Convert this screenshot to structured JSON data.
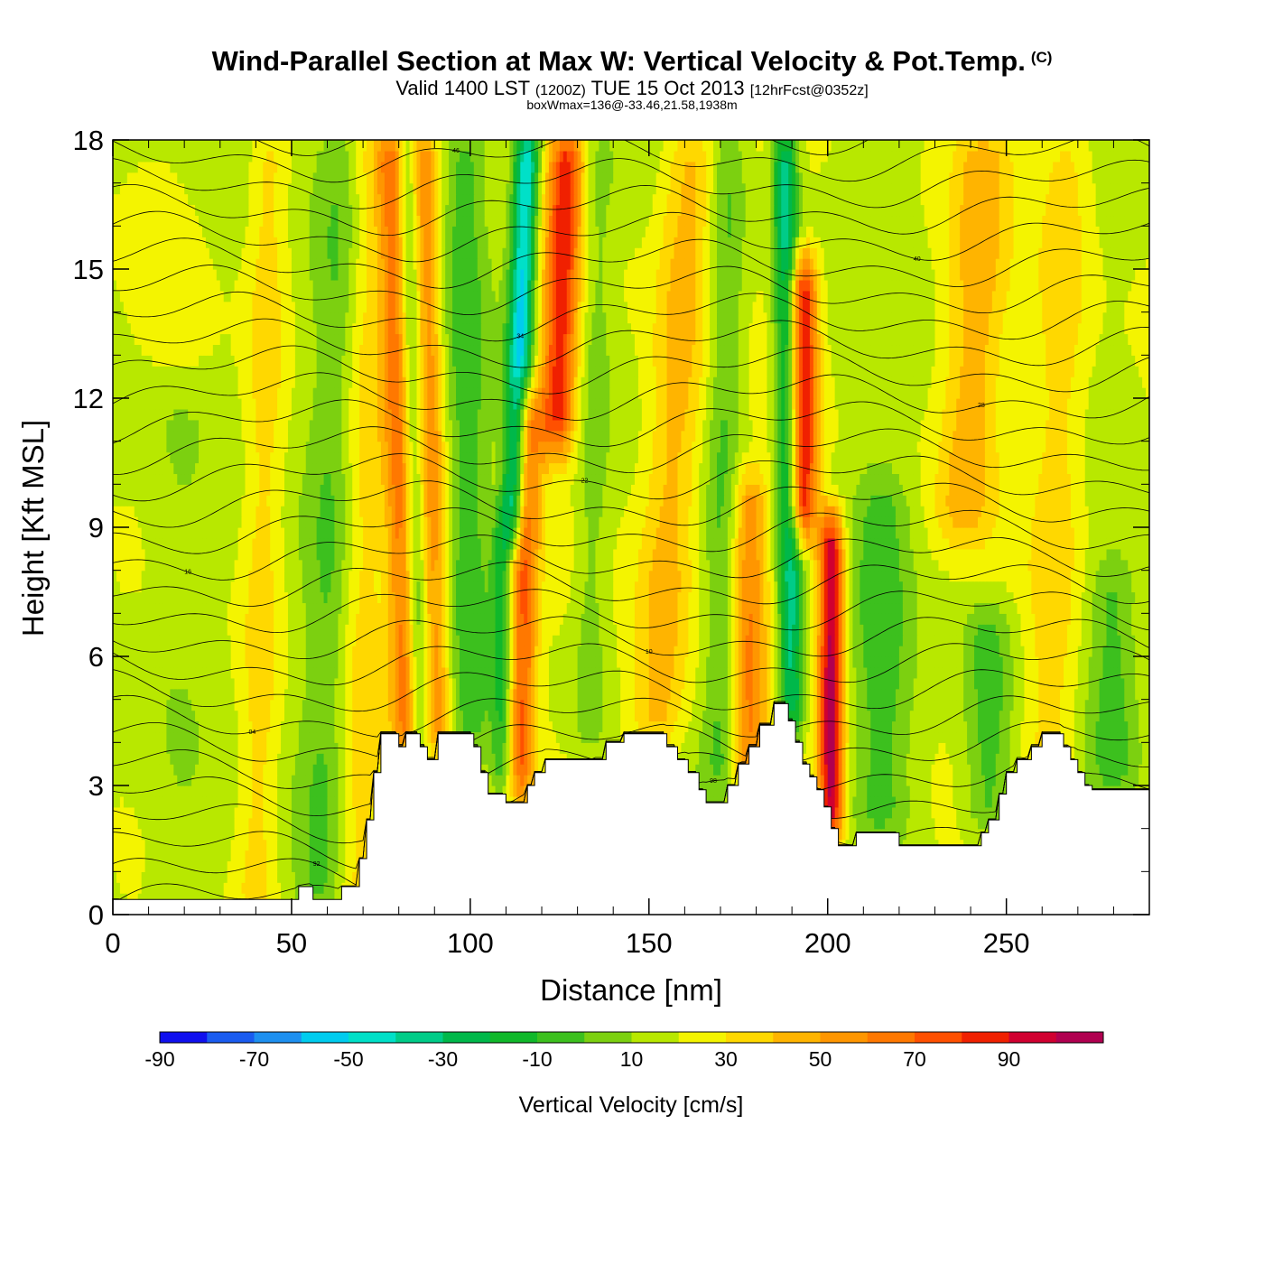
{
  "header": {
    "title": "Wind-Parallel Section at Max W: Vertical Velocity & Pot.Temp.",
    "copyright": "(C)",
    "subtitle_main": "Valid 1400 LST",
    "subtitle_utc": "(1200Z)",
    "subtitle_date": "TUE 15 Oct 2013",
    "subtitle_fcst": "[12hrFcst@0352z]",
    "subtitle2": "boxWmax=136@-33.46,21.58,1938m"
  },
  "chart_data": {
    "type": "heatmap",
    "title": "Wind-Parallel Section at Max W: Vertical Velocity & Pot.Temp.",
    "xlabel": "Distance [nm]",
    "ylabel": "Height [Kft MSL]",
    "xlim": [
      0,
      290
    ],
    "ylim": [
      0,
      18
    ],
    "x_ticks": [
      0,
      50,
      100,
      150,
      200,
      250
    ],
    "x_tick_labels": [
      "0",
      "50",
      "100",
      "150",
      "200",
      "250"
    ],
    "y_ticks": [
      0,
      3,
      6,
      9,
      12,
      15,
      18
    ],
    "y_tick_labels": [
      "0",
      "3",
      "6",
      "9",
      "12",
      "15",
      "18"
    ],
    "colorbar": {
      "title": "Vertical Velocity [cm/s]",
      "levels": [
        -100,
        -90,
        -80,
        -70,
        -60,
        -50,
        -40,
        -30,
        -20,
        -10,
        0,
        10,
        20,
        30,
        40,
        50,
        60,
        70,
        80,
        90,
        100
      ],
      "tick_labels": [
        "-90",
        "-70",
        "-50",
        "-30",
        "-10",
        "10",
        "30",
        "50",
        "70",
        "90"
      ],
      "colors": [
        "#1010ee",
        "#1a5cf0",
        "#1e90f0",
        "#00ccee",
        "#00e0c8",
        "#00cc88",
        "#00b84a",
        "#10b82a",
        "#3cc01e",
        "#7cd010",
        "#b8e800",
        "#f4f400",
        "#ffd800",
        "#ffb400",
        "#ff9600",
        "#ff7800",
        "#ff5000",
        "#f02000",
        "#d00030",
        "#b00050"
      ]
    },
    "terrain": [
      [
        0,
        0.35
      ],
      [
        52,
        0.35
      ],
      [
        52,
        0.65
      ],
      [
        56,
        0.65
      ],
      [
        56,
        0.35
      ],
      [
        64,
        0.35
      ],
      [
        64,
        0.65
      ],
      [
        69,
        0.65
      ],
      [
        69,
        1.3
      ],
      [
        71,
        1.3
      ],
      [
        71,
        2.2
      ],
      [
        73,
        2.2
      ],
      [
        73,
        3.3
      ],
      [
        75,
        3.3
      ],
      [
        75,
        4.2
      ],
      [
        80,
        4.2
      ],
      [
        80,
        3.9
      ],
      [
        82,
        3.9
      ],
      [
        82,
        4.2
      ],
      [
        86,
        4.2
      ],
      [
        86,
        3.9
      ],
      [
        88,
        3.9
      ],
      [
        88,
        3.6
      ],
      [
        91,
        3.6
      ],
      [
        91,
        4.2
      ],
      [
        101,
        4.2
      ],
      [
        101,
        3.9
      ],
      [
        103,
        3.9
      ],
      [
        103,
        3.3
      ],
      [
        105,
        3.3
      ],
      [
        105,
        2.8
      ],
      [
        110,
        2.8
      ],
      [
        110,
        2.6
      ],
      [
        116,
        2.6
      ],
      [
        116,
        3.0
      ],
      [
        118,
        3.0
      ],
      [
        118,
        3.3
      ],
      [
        121,
        3.3
      ],
      [
        121,
        3.6
      ],
      [
        138,
        3.6
      ],
      [
        138,
        4.0
      ],
      [
        143,
        4.0
      ],
      [
        143,
        4.2
      ],
      [
        155,
        4.2
      ],
      [
        155,
        3.9
      ],
      [
        158,
        3.9
      ],
      [
        158,
        3.6
      ],
      [
        161,
        3.6
      ],
      [
        161,
        3.3
      ],
      [
        164,
        3.3
      ],
      [
        164,
        2.9
      ],
      [
        166,
        2.9
      ],
      [
        166,
        2.6
      ],
      [
        172,
        2.6
      ],
      [
        172,
        3.0
      ],
      [
        175,
        3.0
      ],
      [
        175,
        3.5
      ],
      [
        178,
        3.5
      ],
      [
        178,
        3.9
      ],
      [
        181,
        3.9
      ],
      [
        181,
        4.4
      ],
      [
        185,
        4.4
      ],
      [
        185,
        4.9
      ],
      [
        189,
        4.9
      ],
      [
        189,
        4.5
      ],
      [
        191,
        4.5
      ],
      [
        191,
        4.0
      ],
      [
        193,
        4.0
      ],
      [
        193,
        3.5
      ],
      [
        195,
        3.5
      ],
      [
        195,
        3.2
      ],
      [
        197,
        3.2
      ],
      [
        197,
        2.9
      ],
      [
        199,
        2.9
      ],
      [
        199,
        2.5
      ],
      [
        201,
        2.5
      ],
      [
        201,
        2.0
      ],
      [
        203,
        2.0
      ],
      [
        203,
        1.6
      ],
      [
        208,
        1.6
      ],
      [
        208,
        1.9
      ],
      [
        220,
        1.9
      ],
      [
        220,
        1.6
      ],
      [
        243,
        1.6
      ],
      [
        243,
        1.9
      ],
      [
        245,
        1.9
      ],
      [
        245,
        2.2
      ],
      [
        248,
        2.2
      ],
      [
        248,
        2.8
      ],
      [
        250,
        2.8
      ],
      [
        250,
        3.3
      ],
      [
        253,
        3.3
      ],
      [
        253,
        3.6
      ],
      [
        257,
        3.6
      ],
      [
        257,
        3.9
      ],
      [
        260,
        3.9
      ],
      [
        260,
        4.2
      ],
      [
        266,
        4.2
      ],
      [
        266,
        3.9
      ],
      [
        268,
        3.9
      ],
      [
        268,
        3.6
      ],
      [
        270,
        3.6
      ],
      [
        270,
        3.3
      ],
      [
        272,
        3.3
      ],
      [
        272,
        3.0
      ],
      [
        274,
        3.0
      ],
      [
        274,
        2.9
      ],
      [
        290,
        2.9
      ]
    ],
    "velocity_features": [
      {
        "x": 40,
        "w": 6,
        "value": 20,
        "y0": 0,
        "y1": 18,
        "tilt": 4
      },
      {
        "x": 18,
        "w": 10,
        "value": -10,
        "y0": 0,
        "y1": 12,
        "tilt": 0
      },
      {
        "x": 58,
        "w": 7,
        "value": -20,
        "y0": 0,
        "y1": 18,
        "tilt": 6
      },
      {
        "x": 68,
        "w": 6,
        "value": 15,
        "y0": 0,
        "y1": 18,
        "tilt": 4
      },
      {
        "x": 82,
        "w": 4,
        "value": 45,
        "y0": 4,
        "y1": 18,
        "tilt": -4
      },
      {
        "x": 86,
        "w": 3,
        "value": -30,
        "y0": 4,
        "y1": 18,
        "tilt": -4
      },
      {
        "x": 91,
        "w": 4,
        "value": 40,
        "y0": 4,
        "y1": 18,
        "tilt": -4
      },
      {
        "x": 100,
        "w": 6,
        "value": -20,
        "y0": 4,
        "y1": 18,
        "tilt": -2
      },
      {
        "x": 112,
        "w": 3.5,
        "value": -70,
        "y0": 9,
        "y1": 18,
        "tilt": 4
      },
      {
        "x": 109,
        "w": 3,
        "value": -30,
        "y0": 3,
        "y1": 9,
        "tilt": 0
      },
      {
        "x": 114,
        "w": 4,
        "value": 55,
        "y0": 3,
        "y1": 12,
        "tilt": 2
      },
      {
        "x": 124,
        "w": 5,
        "value": 65,
        "y0": 11,
        "y1": 18,
        "tilt": 3
      },
      {
        "x": 133,
        "w": 5,
        "value": -15,
        "y0": 4,
        "y1": 18,
        "tilt": 3
      },
      {
        "x": 152,
        "w": 8,
        "value": 30,
        "y0": 4,
        "y1": 18,
        "tilt": 10
      },
      {
        "x": 170,
        "w": 5,
        "value": -20,
        "y0": 3,
        "y1": 18,
        "tilt": 2
      },
      {
        "x": 178,
        "w": 5,
        "value": 40,
        "y0": 3,
        "y1": 10,
        "tilt": 0
      },
      {
        "x": 190,
        "w": 3.5,
        "value": -55,
        "y0": 4.5,
        "y1": 18,
        "tilt": -2
      },
      {
        "x": 193,
        "w": 4,
        "value": 75,
        "y0": 9,
        "y1": 15,
        "tilt": 0
      },
      {
        "x": 201,
        "w": 3.5,
        "value": 85,
        "y0": 2,
        "y1": 9,
        "tilt": 0
      },
      {
        "x": 215,
        "w": 8,
        "value": -20,
        "y0": 2,
        "y1": 10,
        "tilt": 0
      },
      {
        "x": 238,
        "w": 8,
        "value": 25,
        "y0": 9,
        "y1": 18,
        "tilt": 6
      },
      {
        "x": 245,
        "w": 7,
        "value": -25,
        "y0": 2,
        "y1": 7,
        "tilt": 0
      },
      {
        "x": 262,
        "w": 8,
        "value": 20,
        "y0": 3,
        "y1": 18,
        "tilt": 5
      },
      {
        "x": 280,
        "w": 7,
        "value": -20,
        "y0": 3,
        "y1": 8,
        "tilt": 0
      }
    ],
    "theta_contours": {
      "levels": [
        290,
        292,
        294,
        296,
        298,
        300,
        302,
        304,
        306,
        308,
        310,
        312,
        314,
        316,
        318,
        320,
        322,
        324,
        326,
        328,
        330,
        332,
        334,
        336,
        338,
        340,
        342,
        344,
        346,
        348
      ],
      "label_format": "2-digit"
    }
  }
}
